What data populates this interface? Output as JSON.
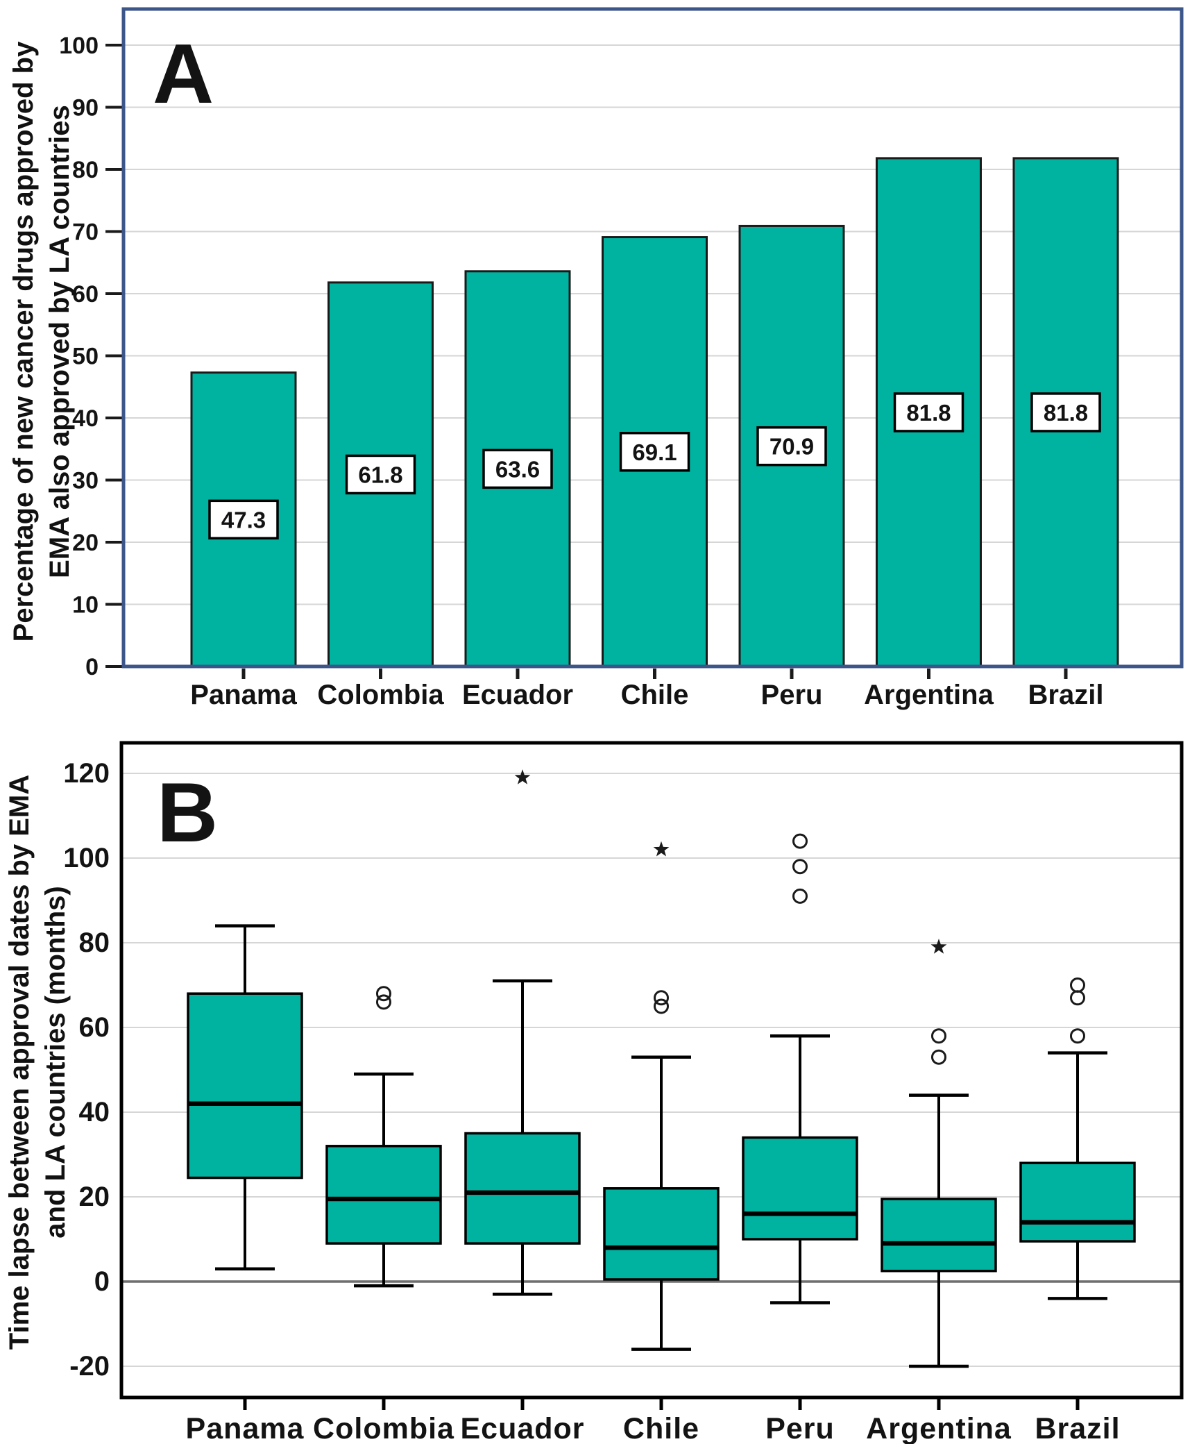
{
  "figure": {
    "panel_a_letter": "A",
    "panel_b_letter": "B"
  },
  "colors": {
    "box_fill": "#00B2A0",
    "panel_a_frame": "#3C5689",
    "panel_b_frame": "#000000",
    "grid": "#D6D6D6",
    "zero_line": "#6F6F6F",
    "marker": "#1A1A1A",
    "bar_stroke": "#1A1A1A",
    "label_box_bg": "#FFFFFF"
  },
  "chart_data": [
    {
      "type": "bar",
      "panel": "A",
      "title": "",
      "ylabel": "Percentage of new cancer drugs approved by EMA also approved by LA countries",
      "ylabel_lines": [
        "Percentage of new cancer drugs approved by",
        "EMA also approved by LA countries"
      ],
      "xlabel": "",
      "categories": [
        "Panama",
        "Colombia",
        "Ecuador",
        "Chile",
        "Peru",
        "Argentina",
        "Brazil"
      ],
      "values": [
        47.3,
        61.8,
        63.6,
        69.1,
        70.9,
        81.8,
        81.8
      ],
      "bar_labels": [
        "47.3",
        "61.8",
        "63.6",
        "69.1",
        "70.9",
        "81.8",
        "81.8"
      ],
      "yticks": [
        0,
        10,
        20,
        30,
        40,
        50,
        60,
        70,
        80,
        90,
        100
      ],
      "ylim": [
        0,
        105.5
      ],
      "grid": true,
      "legend_position": "none"
    },
    {
      "type": "boxplot",
      "panel": "B",
      "title": "",
      "ylabel": "Time lapse between approval dates by EMA and LA countries (months)",
      "ylabel_lines": [
        "Time lapse between approval dates by EMA",
        "and LA countries (months)"
      ],
      "xlabel": "",
      "categories": [
        "Panama",
        "Colombia",
        "Ecuador",
        "Chile",
        "Peru",
        "Argentina",
        "Brazil"
      ],
      "yticks": [
        -20,
        0,
        20,
        40,
        60,
        80,
        100,
        120
      ],
      "ylim": [
        -27,
        128
      ],
      "grid": true,
      "zero_line": 0,
      "series": [
        {
          "name": "Panama",
          "whisker_low": 3,
          "q1": 24.5,
          "median": 42,
          "q3": 68,
          "whisker_high": 84,
          "outliers": [],
          "extremes": []
        },
        {
          "name": "Colombia",
          "whisker_low": -1,
          "q1": 9,
          "median": 19.5,
          "q3": 32,
          "whisker_high": 49,
          "outliers": [
            66,
            68
          ],
          "extremes": []
        },
        {
          "name": "Ecuador",
          "whisker_low": -3,
          "q1": 9,
          "median": 21,
          "q3": 35,
          "whisker_high": 71,
          "outliers": [],
          "extremes": [
            119
          ]
        },
        {
          "name": "Chile",
          "whisker_low": -16,
          "q1": 0.5,
          "median": 8,
          "q3": 22,
          "whisker_high": 53,
          "outliers": [
            65,
            67
          ],
          "extremes": [
            102
          ]
        },
        {
          "name": "Peru",
          "whisker_low": -5,
          "q1": 10,
          "median": 16,
          "q3": 34,
          "whisker_high": 58,
          "outliers": [
            91,
            98,
            104
          ],
          "extremes": []
        },
        {
          "name": "Argentina",
          "whisker_low": -20,
          "q1": 2.5,
          "median": 9,
          "q3": 19.5,
          "whisker_high": 44,
          "outliers": [
            53,
            58
          ],
          "extremes": [
            79
          ]
        },
        {
          "name": "Brazil",
          "whisker_low": -4,
          "q1": 9.5,
          "median": 14,
          "q3": 28,
          "whisker_high": 54,
          "outliers": [
            58,
            67,
            70
          ],
          "extremes": []
        }
      ]
    }
  ]
}
